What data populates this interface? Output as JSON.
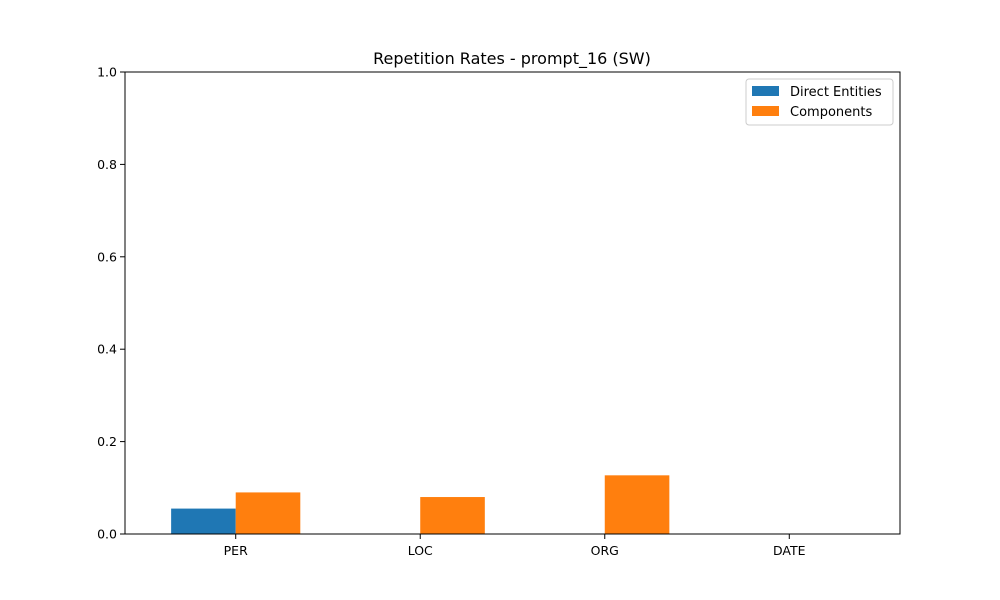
{
  "chart_data": {
    "type": "bar",
    "title": "Repetition Rates - prompt_16 (SW)",
    "xlabel": "",
    "ylabel": "",
    "categories": [
      "PER",
      "LOC",
      "ORG",
      "DATE"
    ],
    "series": [
      {
        "name": "Direct Entities",
        "values": [
          0.055,
          0.0,
          0.0,
          0.0
        ],
        "color": "#1f77b4"
      },
      {
        "name": "Components",
        "values": [
          0.09,
          0.08,
          0.127,
          0.0
        ],
        "color": "#ff7f0e"
      }
    ],
    "ylim": [
      0,
      1.0
    ],
    "yticks": [
      "0.0",
      "0.2",
      "0.4",
      "0.6",
      "0.8",
      "1.0"
    ],
    "grid": false,
    "legend_position": "top-right"
  }
}
